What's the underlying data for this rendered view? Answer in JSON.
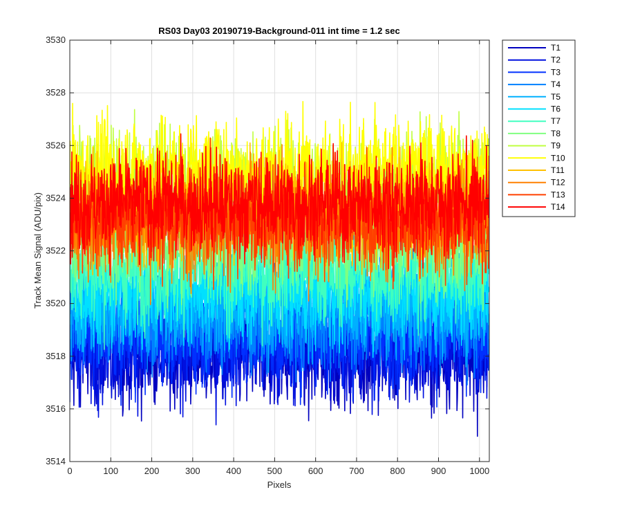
{
  "chart_data": {
    "type": "line",
    "title": "RS03 Day03 20190719-Background-011 int time = 1.2 sec",
    "xlabel": "Pixels",
    "ylabel": "Track Mean Signal (ADU/pix)",
    "xlim": [
      0,
      1024
    ],
    "ylim": [
      3514,
      3530
    ],
    "xticks": [
      0,
      100,
      200,
      300,
      400,
      500,
      600,
      700,
      800,
      900,
      1000
    ],
    "yticks": [
      3514,
      3516,
      3518,
      3520,
      3522,
      3524,
      3526,
      3528,
      3530
    ],
    "grid": true,
    "legend_position": "outside-top-right",
    "n_points": 1024,
    "series": [
      {
        "name": "T1",
        "mean": 3518.0,
        "noise": 1.2,
        "color": "#0000bf"
      },
      {
        "name": "T2",
        "mean": 3518.3,
        "noise": 1.2,
        "color": "#0010df"
      },
      {
        "name": "T3",
        "mean": 3518.8,
        "noise": 1.2,
        "color": "#0030ff"
      },
      {
        "name": "T4",
        "mean": 3519.5,
        "noise": 1.2,
        "color": "#0080ff"
      },
      {
        "name": "T5",
        "mean": 3520.0,
        "noise": 1.2,
        "color": "#00b0ff"
      },
      {
        "name": "T6",
        "mean": 3520.6,
        "noise": 1.2,
        "color": "#00e0ff"
      },
      {
        "name": "T7",
        "mean": 3521.3,
        "noise": 1.2,
        "color": "#40ffbf"
      },
      {
        "name": "T8",
        "mean": 3522.5,
        "noise": 1.2,
        "color": "#80ff80"
      },
      {
        "name": "T9",
        "mean": 3524.5,
        "noise": 1.3,
        "color": "#bfff40"
      },
      {
        "name": "T10",
        "mean": 3525.0,
        "noise": 1.3,
        "color": "#ffff00"
      },
      {
        "name": "T11",
        "mean": 3523.5,
        "noise": 1.2,
        "color": "#ffc000"
      },
      {
        "name": "T12",
        "mean": 3523.0,
        "noise": 1.2,
        "color": "#ff8000"
      },
      {
        "name": "T13",
        "mean": 3523.2,
        "noise": 1.2,
        "color": "#ff4000"
      },
      {
        "name": "T14",
        "mean": 3523.8,
        "noise": 1.2,
        "color": "#ff0000"
      }
    ]
  }
}
